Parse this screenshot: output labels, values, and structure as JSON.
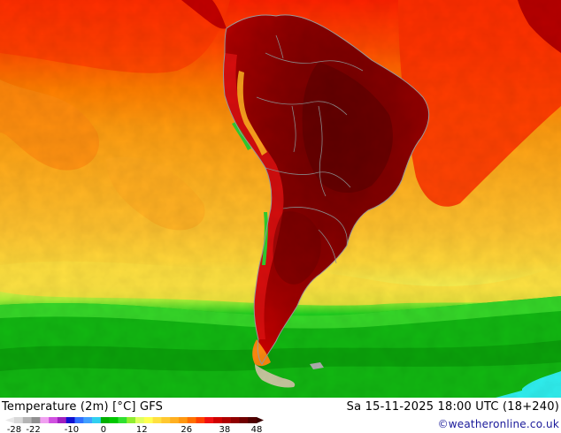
{
  "map": {
    "title": "Temperature (2m) [°C] GFS",
    "datetime": "Sa 15-11-2025 18:00 UTC (18+240)",
    "credit": "©weatheronline.co.uk"
  },
  "legend": {
    "ticks": [
      "-28",
      "-22",
      "-10",
      "0",
      "12",
      "26",
      "38",
      "48"
    ],
    "colors": [
      "#d8d8d8",
      "#b4b4b4",
      "#909090",
      "#f0a0f0",
      "#d050e0",
      "#a020c0",
      "#1010d0",
      "#3070ff",
      "#40a0ff",
      "#30d0f0",
      "#00b000",
      "#00c800",
      "#30e030",
      "#90ee30",
      "#e0ff60",
      "#ffff50",
      "#ffe040",
      "#ffc830",
      "#ffb020",
      "#ff9810",
      "#ff7000",
      "#ff4000",
      "#f01010",
      "#d00000",
      "#b00000",
      "#900000",
      "#700000",
      "#500000"
    ]
  },
  "colors": {
    "ocean_hot": "#ff2a00",
    "ocean_orange": "#ff9a10",
    "ocean_yellow": "#ffd23a",
    "ocean_green": "#10c010",
    "ocean_cyan": "#30f0f0",
    "land_hot": "#8a0000",
    "ice_grey": "#a0a0a0",
    "border": "#909090"
  }
}
